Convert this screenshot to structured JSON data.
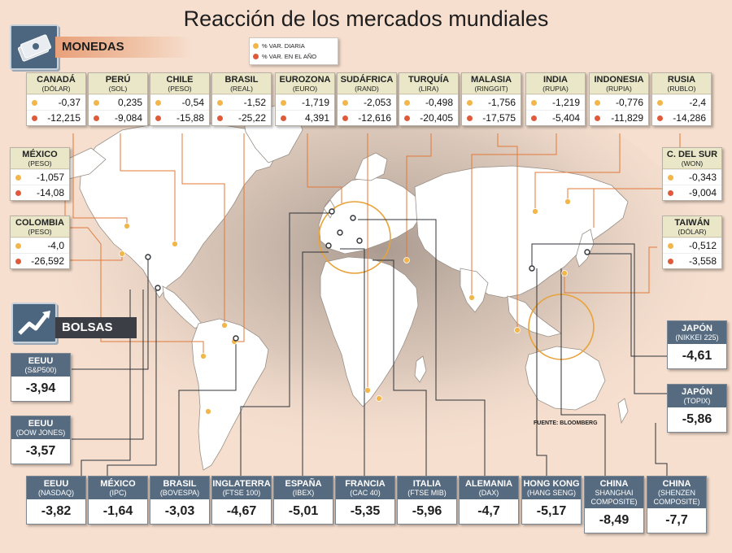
{
  "title": "Reacción de los mercados mundiales",
  "sections": {
    "monedas": "MONEDAS",
    "bolsas": "BOLSAS"
  },
  "legend": {
    "daily": "% VAR. DIARIA",
    "yearly": "% VAR. EN EL AÑO"
  },
  "colors": {
    "daily": "#f2b64a",
    "yearly": "#df5a3b",
    "leader_line": "#e07a3a",
    "stock_header": "#566b80",
    "currency_header": "#e9e7c7"
  },
  "source": "FUENTE: BLOOMBERG",
  "currencies": [
    {
      "name": "CANADÁ",
      "unit": "(DÓLAR)",
      "daily": "-0,37",
      "yearly": "-12,215"
    },
    {
      "name": "PERÚ",
      "unit": "(SOL)",
      "daily": "0,235",
      "yearly": "-9,084"
    },
    {
      "name": "CHILE",
      "unit": "(PESO)",
      "daily": "-0,54",
      "yearly": "-15,88"
    },
    {
      "name": "BRASIL",
      "unit": "(REAL)",
      "daily": "-1,52",
      "yearly": "-25,22"
    },
    {
      "name": "EUROZONA",
      "unit": "(EURO)",
      "daily": "-1,719",
      "yearly": "4,391"
    },
    {
      "name": "SUDÁFRICA",
      "unit": "(RAND)",
      "daily": "-2,053",
      "yearly": "-12,616"
    },
    {
      "name": "TURQUÍA",
      "unit": "(LIRA)",
      "daily": "-0,498",
      "yearly": "-20,405"
    },
    {
      "name": "MALASIA",
      "unit": "(RINGGIT)",
      "daily": "-1,756",
      "yearly": "-17,575"
    },
    {
      "name": "INDIA",
      "unit": "(RUPIA)",
      "daily": "-1,219",
      "yearly": "-5,404"
    },
    {
      "name": "INDONESIA",
      "unit": "(RUPIA)",
      "daily": "-0,776",
      "yearly": "-11,829"
    },
    {
      "name": "RUSIA",
      "unit": "(RUBLO)",
      "daily": "-2,4",
      "yearly": "-14,286"
    },
    {
      "name": "MÉXICO",
      "unit": "(PESO)",
      "daily": "-1,057",
      "yearly": "-14,08"
    },
    {
      "name": "COLOMBIA",
      "unit": "(PESO)",
      "daily": "-4,0",
      "yearly": "-26,592"
    },
    {
      "name": "C. DEL SUR",
      "unit": "(WON)",
      "daily": "-0,343",
      "yearly": "-9,004"
    },
    {
      "name": "TAIWÁN",
      "unit": "(DÓLAR)",
      "daily": "-0,512",
      "yearly": "-3,558"
    }
  ],
  "stocks": [
    {
      "name": "EEUU",
      "index": "(S&P500)",
      "value": "-3,94"
    },
    {
      "name": "EEUU",
      "index": "(DOW JONES)",
      "value": "-3,57"
    },
    {
      "name": "JAPÓN",
      "index": "(NIKKEI 225)",
      "value": "-4,61"
    },
    {
      "name": "JAPÓN",
      "index": "(TOPIX)",
      "value": "-5,86"
    },
    {
      "name": "EEUU",
      "index": "(NASDAQ)",
      "value": "-3,82"
    },
    {
      "name": "MÉXICO",
      "index": "(IPC)",
      "value": "-1,64"
    },
    {
      "name": "BRASIL",
      "index": "(BOVESPA)",
      "value": "-3,03"
    },
    {
      "name": "INGLATERRA",
      "index": "(FTSE 100)",
      "value": "-4,67"
    },
    {
      "name": "ESPAÑA",
      "index": "(IBEX)",
      "value": "-5,01"
    },
    {
      "name": "FRANCIA",
      "index": "(CAC 40)",
      "value": "-5,35"
    },
    {
      "name": "ITALIA",
      "index": "(FTSE MIB)",
      "value": "-5,96"
    },
    {
      "name": "ALEMANIA",
      "index": "(DAX)",
      "value": "-4,7"
    },
    {
      "name": "HONG KONG",
      "index": "(HANG SENG)",
      "value": "-5,17"
    },
    {
      "name": "CHINA",
      "index": "SHANGHAI COMPOSITE)",
      "value": "-8,49"
    },
    {
      "name": "CHINA",
      "index": "(SHENZEN COMPOSITE)",
      "value": "-7,7"
    }
  ]
}
